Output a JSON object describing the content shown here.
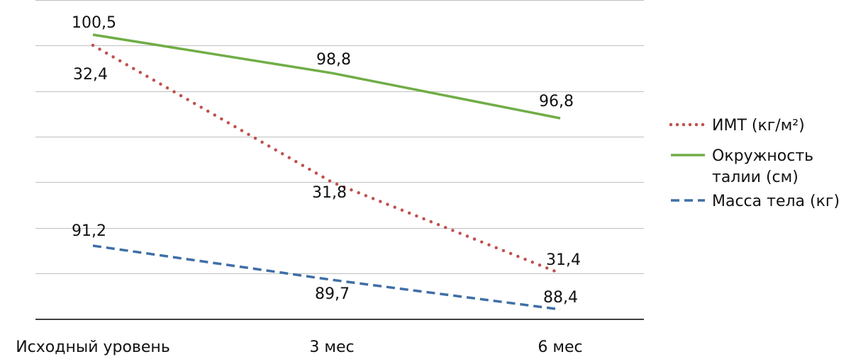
{
  "chart_data": {
    "type": "line",
    "categories": [
      "Исходный уровень",
      "3 мес",
      "6 мес"
    ],
    "series": [
      {
        "key": "bmi",
        "name": "ИМТ (кг/м²)",
        "color": "#c0504d",
        "dash": "dotted",
        "values": [
          32.4,
          31.8,
          31.4
        ],
        "labels": [
          "32,4",
          "31,8",
          "31,4"
        ]
      },
      {
        "key": "waist",
        "name": "Окружность талии (см)",
        "color": "#70ad47",
        "dash": "solid",
        "values": [
          100.5,
          98.8,
          96.8
        ],
        "labels": [
          "100,5",
          "98,8",
          "96,8"
        ]
      },
      {
        "key": "mass",
        "name": "Масса тела (кг)",
        "color": "#3f6fa6",
        "dash": "dashed",
        "values": [
          91.2,
          89.7,
          88.4
        ],
        "labels": [
          "91,2",
          "89,7",
          "88,4"
        ]
      }
    ],
    "legend_lines": {
      "bmi": [
        "ИМТ (кг/м²)"
      ],
      "waist": [
        "Окружность",
        "талии (см)"
      ],
      "mass": [
        "Масса тела (кг)"
      ]
    },
    "grid": true,
    "legend_position": "right",
    "yaxis_labels_shown": false
  }
}
